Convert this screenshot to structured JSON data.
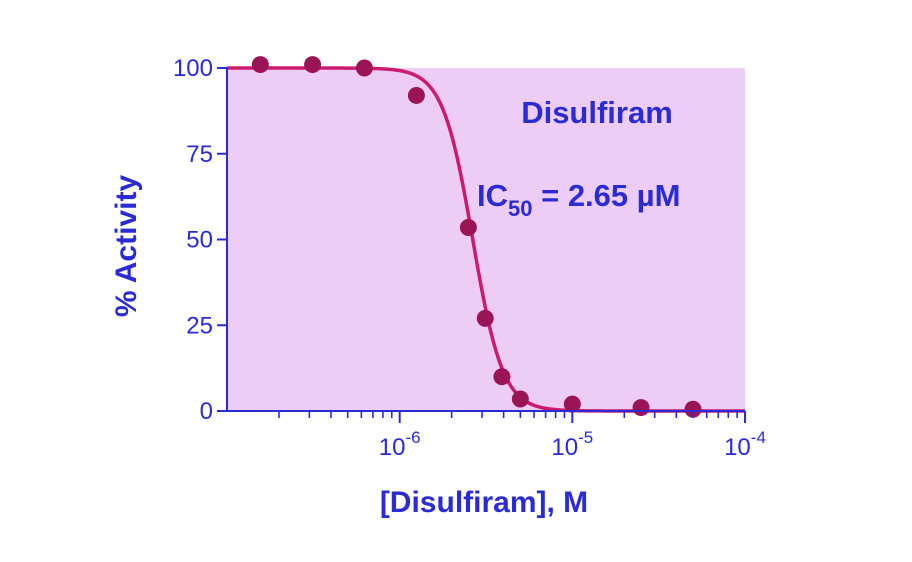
{
  "chart_data": {
    "type": "scatter",
    "title": "",
    "xlabel": "[Disulfiram], M",
    "ylabel": "% Activity",
    "x_scale": "log",
    "xlim": [
      1e-07,
      0.0001
    ],
    "ylim": [
      0,
      100
    ],
    "y_ticks": [
      {
        "value": 0,
        "label": "0"
      },
      {
        "value": 25,
        "label": "25"
      },
      {
        "value": 50,
        "label": "50"
      },
      {
        "value": 75,
        "label": "75"
      },
      {
        "value": 100,
        "label": "100"
      }
    ],
    "x_ticks": [
      {
        "value": 1e-06,
        "base": "10",
        "exp": "-6"
      },
      {
        "value": 1e-05,
        "base": "10",
        "exp": "-5"
      },
      {
        "value": 0.0001,
        "base": "10",
        "exp": "-4"
      }
    ],
    "series": [
      {
        "points": [
          {
            "x": 1.56e-07,
            "y": 101
          },
          {
            "x": 3.13e-07,
            "y": 101
          },
          {
            "x": 6.25e-07,
            "y": 100
          },
          {
            "x": 1.25e-06,
            "y": 92
          },
          {
            "x": 2.5e-06,
            "y": 53.5
          },
          {
            "x": 3.13e-06,
            "y": 27
          },
          {
            "x": 3.91e-06,
            "y": 10
          },
          {
            "x": 5e-06,
            "y": 3.5
          },
          {
            "x": 1e-05,
            "y": 2
          },
          {
            "x": 2.5e-05,
            "y": 1
          },
          {
            "x": 5e-05,
            "y": 0.5
          }
        ]
      }
    ],
    "fit": {
      "ic50": 2.65e-06,
      "top": 100,
      "bottom": 0,
      "hill": 5
    },
    "annotations": {
      "compound": "Disulfiram",
      "ic_prefix": "IC",
      "ic_sub": "50",
      "ic_value": " = 2.65 µM"
    },
    "grid": false,
    "legend": "none",
    "colors": {
      "plot_background": "#edcdf6",
      "axis": "#2b2bd6",
      "text": "#2b2bd6",
      "curve": "#cc1b6e",
      "points": "#9b1455"
    }
  }
}
